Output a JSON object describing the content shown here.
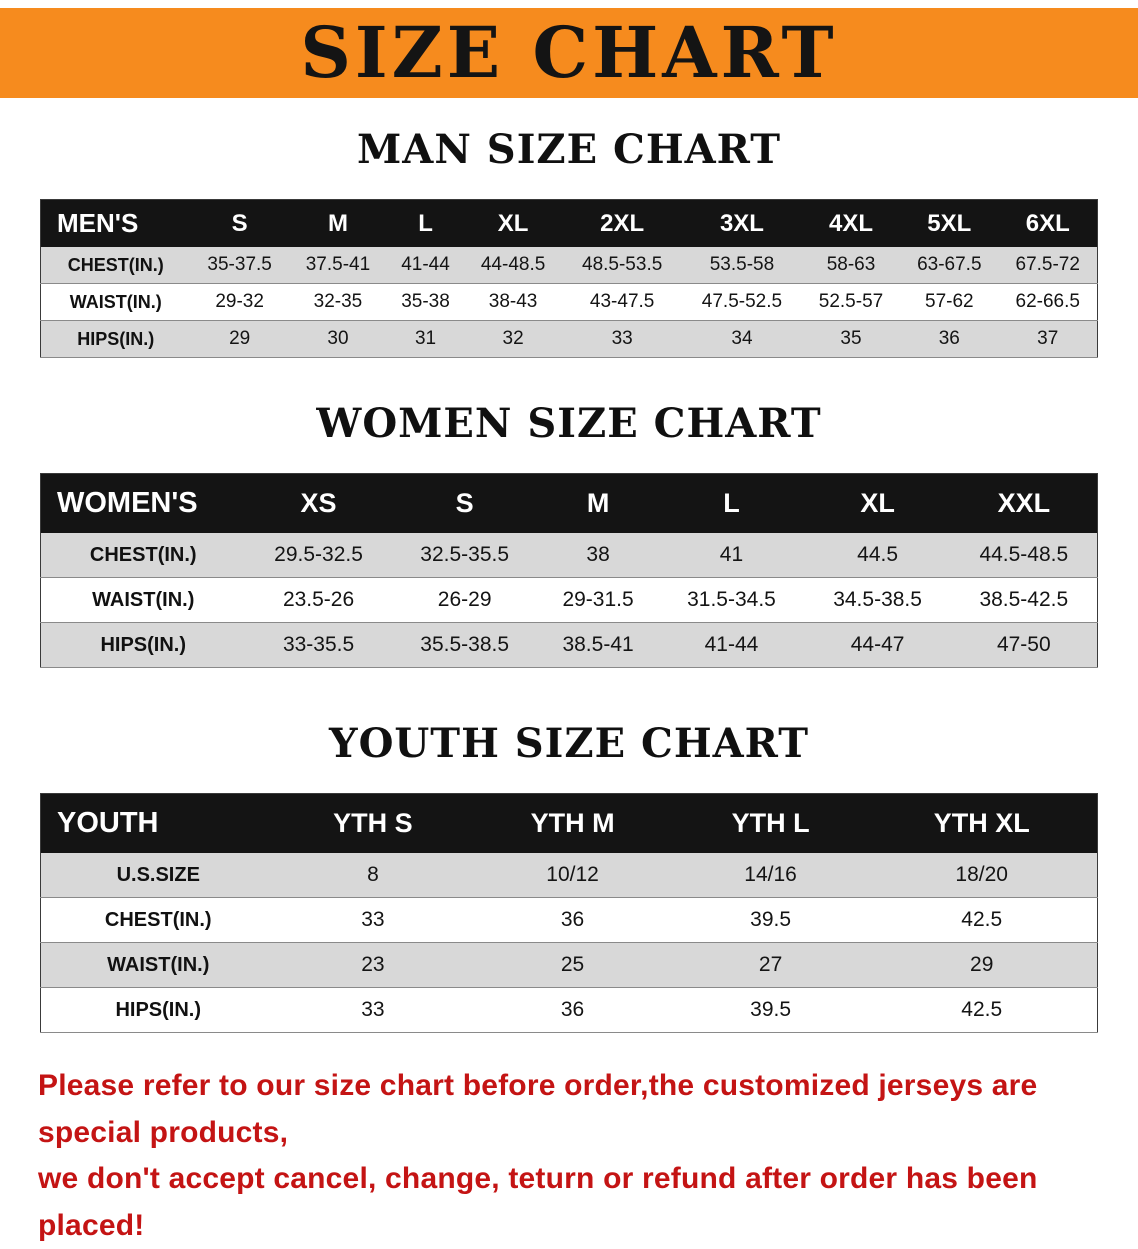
{
  "banner": {
    "title": "SIZE CHART",
    "background": "#f68b1e"
  },
  "sections": [
    {
      "heading": "MAN SIZE CHART",
      "table": {
        "header": [
          "MEN'S",
          "S",
          "M",
          "L",
          "XL",
          "2XL",
          "3XL",
          "4XL",
          "5XL",
          "6XL"
        ],
        "rows": [
          [
            "CHEST(IN.)",
            "35-37.5",
            "37.5-41",
            "41-44",
            "44-48.5",
            "48.5-53.5",
            "53.5-58",
            "58-63",
            "63-67.5",
            "67.5-72"
          ],
          [
            "WAIST(IN.)",
            "29-32",
            "32-35",
            "35-38",
            "38-43",
            "43-47.5",
            "47.5-52.5",
            "52.5-57",
            "57-62",
            "62-66.5"
          ],
          [
            "HIPS(IN.)",
            "29",
            "30",
            "31",
            "32",
            "33",
            "34",
            "35",
            "36",
            "37"
          ]
        ]
      }
    },
    {
      "heading": "WOMEN SIZE CHART",
      "table": {
        "header": [
          "WOMEN'S",
          "XS",
          "S",
          "M",
          "L",
          "XL",
          "XXL"
        ],
        "rows": [
          [
            "CHEST(IN.)",
            "29.5-32.5",
            "32.5-35.5",
            "38",
            "41",
            "44.5",
            "44.5-48.5"
          ],
          [
            "WAIST(IN.)",
            "23.5-26",
            "26-29",
            "29-31.5",
            "31.5-34.5",
            "34.5-38.5",
            "38.5-42.5"
          ],
          [
            "HIPS(IN.)",
            "33-35.5",
            "35.5-38.5",
            "38.5-41",
            "41-44",
            "44-47",
            "47-50"
          ]
        ]
      }
    },
    {
      "heading": "YOUTH SIZE CHART",
      "table": {
        "header": [
          "YOUTH",
          "YTH S",
          "YTH M",
          "YTH L",
          "YTH XL"
        ],
        "rows": [
          [
            "U.S.SIZE",
            "8",
            "10/12",
            "14/16",
            "18/20"
          ],
          [
            "CHEST(IN.)",
            "33",
            "36",
            "39.5",
            "42.5"
          ],
          [
            "WAIST(IN.)",
            "23",
            "25",
            "27",
            "29"
          ],
          [
            "HIPS(IN.)",
            "33",
            "36",
            "39.5",
            "42.5"
          ]
        ]
      }
    }
  ],
  "disclaimer": {
    "lines": [
      "Please refer to our size chart before order,the customized jerseys are special products,",
      "we don't accept cancel, change, teturn or refund after order has been placed!"
    ],
    "color": "#c41414"
  }
}
